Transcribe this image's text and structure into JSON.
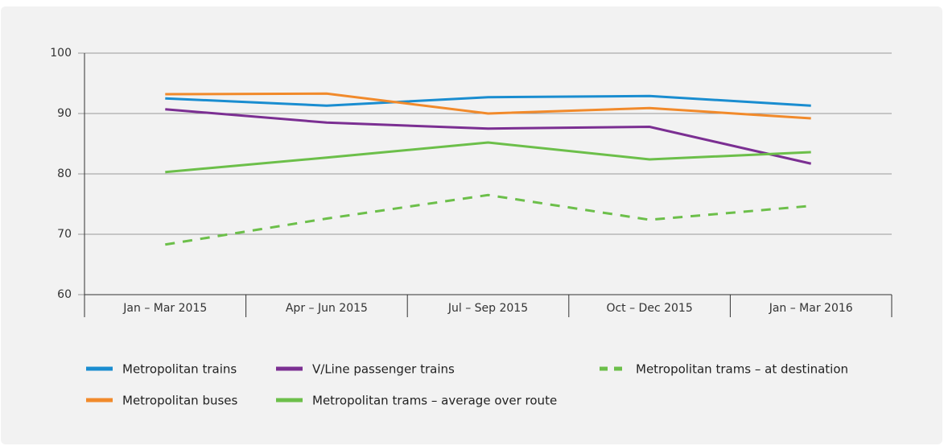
{
  "chart_data": {
    "type": "line",
    "categories": [
      "Jan – Mar 2015",
      "Apr – Jun 2015",
      "Jul – Sep 2015",
      "Oct – Dec 2015",
      "Jan – Mar 2016"
    ],
    "series": [
      {
        "name": "Metropolitan trains",
        "color": "#1a8dd0",
        "values": [
          92.5,
          91.3,
          92.7,
          92.9,
          91.3
        ]
      },
      {
        "name": "Metropolitan buses",
        "color": "#f18a2b",
        "values": [
          93.2,
          93.3,
          90.0,
          90.9,
          89.2
        ]
      },
      {
        "name": "V/Line passenger trains",
        "color": "#7b2f92",
        "values": [
          90.7,
          88.5,
          87.5,
          87.8,
          81.7
        ]
      },
      {
        "name": "Metropolitan trams – average over route",
        "color": "#6cbf4a",
        "values": [
          80.3,
          82.7,
          85.2,
          82.4,
          83.6
        ]
      },
      {
        "name": "Metropolitan trams – at destination",
        "color": "#6cbf4a",
        "dashed": true,
        "values": [
          68.3,
          72.6,
          76.5,
          72.4,
          74.7
        ]
      }
    ],
    "ylim": [
      60,
      100
    ],
    "yticks": [
      60,
      70,
      80,
      90,
      100
    ],
    "grid": true
  }
}
